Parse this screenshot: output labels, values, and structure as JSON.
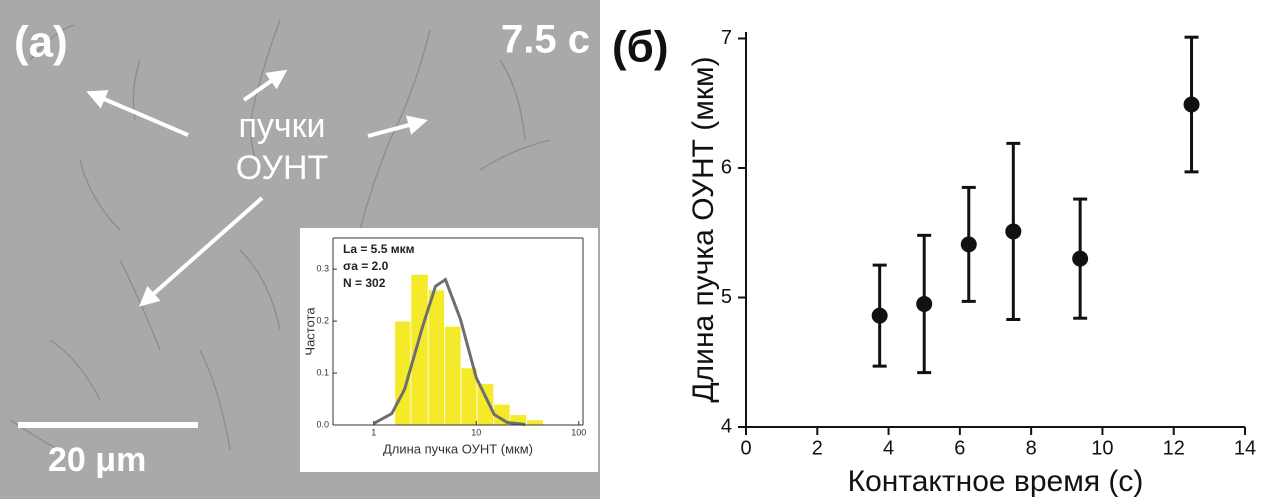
{
  "panel_a": {
    "label": "(a)",
    "time": "7.5 с",
    "annotation_lines": [
      "пучки",
      "ОУНТ"
    ],
    "scale_bar": "20 μm"
  },
  "chart_data": [
    {
      "type": "histogram",
      "xlabel": "Длина пучка ОУНТ (мкм)",
      "ylabel": "Частота",
      "annotations": [
        "La = 5.5 мкм",
        "σa = 2.0",
        "N = 302"
      ],
      "xscale": "log",
      "xlim": [
        0.4,
        110
      ],
      "xticks": [
        1,
        10,
        100
      ],
      "ylim": [
        0,
        0.36
      ],
      "yticks": [
        {
          "value": 0,
          "label": "0.0"
        },
        0.1,
        0.2,
        0.3
      ],
      "bins": [
        1.6,
        2.3,
        3.4,
        4.9,
        7.1,
        10.2,
        14.8,
        21.4,
        31,
        45
      ],
      "values": [
        0.2,
        0.29,
        0.26,
        0.19,
        0.11,
        0.08,
        0.04,
        0.02,
        0.01
      ],
      "color": "#f5ea2a",
      "fit": {
        "color": "#6e6e6e",
        "x": [
          1,
          1.5,
          2,
          3,
          4,
          5,
          7,
          10,
          15,
          20,
          30
        ],
        "values": [
          0.003,
          0.022,
          0.069,
          0.19,
          0.267,
          0.28,
          0.204,
          0.091,
          0.02,
          0.005,
          0.001
        ]
      }
    },
    {
      "type": "errorbar",
      "panel_label": "(б)",
      "xlabel": "Контактное время (с)",
      "ylabel": "Длина пучка ОУНТ (мкм)",
      "xlim": [
        0,
        14
      ],
      "xticks": [
        0,
        2,
        4,
        6,
        8,
        10,
        12,
        14
      ],
      "ylim": [
        4,
        7.05
      ],
      "yticks": [
        4,
        5,
        6,
        7
      ],
      "x": [
        3.75,
        5,
        6.25,
        7.5,
        9.375,
        12.5
      ],
      "values": [
        4.86,
        4.95,
        5.41,
        5.51,
        5.3,
        6.49
      ],
      "errors": [
        0.39,
        0.53,
        0.44,
        0.68,
        0.46,
        0.52
      ],
      "color": "#111111"
    }
  ]
}
